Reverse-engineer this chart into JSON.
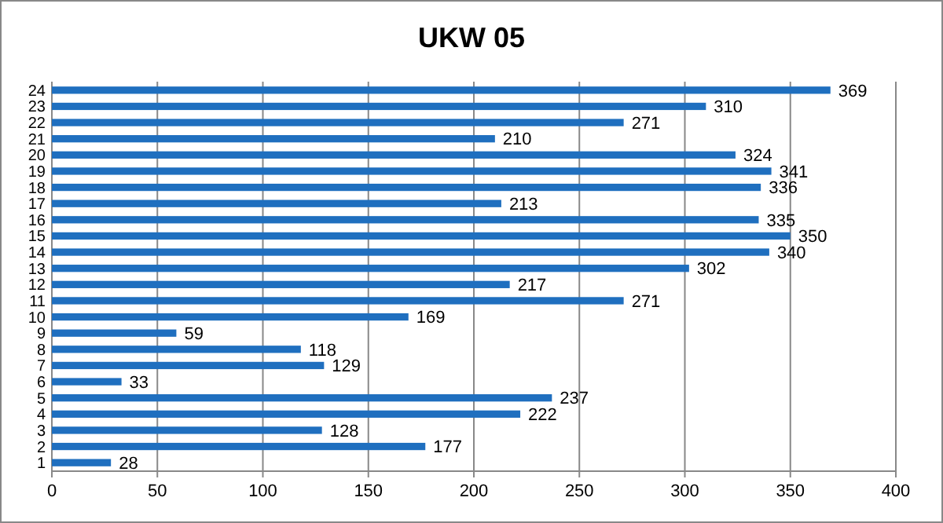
{
  "chart_data": {
    "type": "bar",
    "title": "UKW 05",
    "orientation": "horizontal",
    "categories": [
      "24",
      "23",
      "22",
      "21",
      "20",
      "19",
      "18",
      "17",
      "16",
      "15",
      "14",
      "13",
      "12",
      "11",
      "10",
      "9",
      "8",
      "7",
      "6",
      "5",
      "4",
      "3",
      "2",
      "1"
    ],
    "values": [
      369,
      310,
      271,
      210,
      324,
      341,
      336,
      213,
      335,
      350,
      340,
      302,
      217,
      271,
      169,
      59,
      118,
      129,
      33,
      237,
      222,
      128,
      177,
      28
    ],
    "color": "#1f6fbf",
    "xlim": [
      0,
      400
    ],
    "xticks": [
      0,
      50,
      100,
      150,
      200,
      250,
      300,
      350,
      400
    ],
    "grid": "x",
    "data_labels": true
  }
}
